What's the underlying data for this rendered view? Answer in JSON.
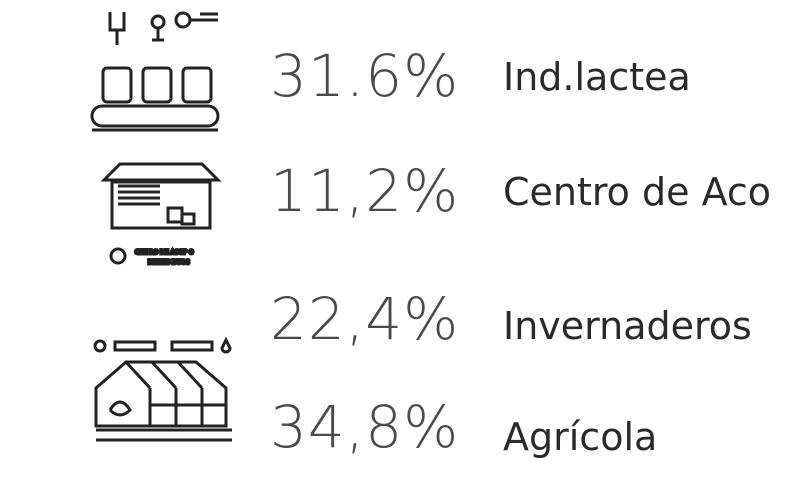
{
  "items": [
    {
      "percent": "31.6%",
      "label": "Ind.lactea"
    },
    {
      "percent": "11,2%",
      "label": "Centro de Aco"
    },
    {
      "percent": "22,4%",
      "label": "Invernaderos"
    },
    {
      "percent": "34,8%",
      "label": "Agrícola"
    }
  ],
  "icon_caption": [
    "CEN RO DE ACOP O",
    "DE RES DUOS"
  ]
}
